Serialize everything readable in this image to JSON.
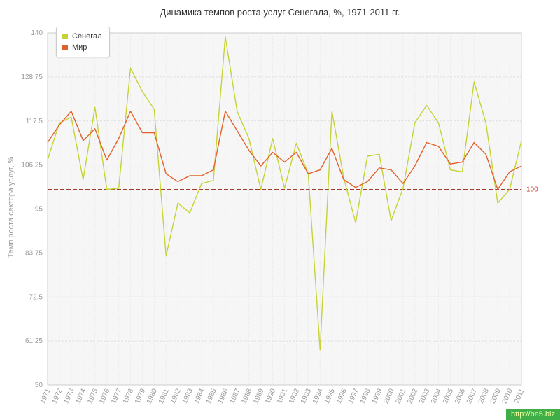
{
  "title": "Динамика темпов роста услуг Сенегала, %, 1971-2011 гг.",
  "ylabel": "Темп роста сектора услуг, %",
  "watermark": "http://be5.biz",
  "legend": {
    "items": [
      {
        "label": "Сенегал"
      },
      {
        "label": "Мир"
      }
    ]
  },
  "chart_data": {
    "type": "line",
    "title": "Динамика темпов роста услуг Сенегала, %, 1971-2011 гг.",
    "xlabel": "",
    "ylabel": "Темп роста сектора услуг, %",
    "ylim": [
      50,
      140
    ],
    "yticks": [
      50,
      61.25,
      72.5,
      83.75,
      95,
      106.25,
      117.5,
      128.75,
      140
    ],
    "grid": true,
    "legend_position": "top-left",
    "ref_line": 100,
    "ref_line_color": "#a33a2a",
    "categories": [
      1971,
      1972,
      1973,
      1974,
      1975,
      1976,
      1977,
      1978,
      1979,
      1980,
      1981,
      1982,
      1983,
      1984,
      1985,
      1986,
      1987,
      1988,
      1989,
      1990,
      1991,
      1992,
      1993,
      1994,
      1995,
      1996,
      1997,
      1998,
      1999,
      2000,
      2001,
      2002,
      2003,
      2004,
      2005,
      2006,
      2007,
      2008,
      2009,
      2010,
      2011
    ],
    "series": [
      {
        "name": "Сенегал",
        "color": "#c6d334",
        "values": [
          107.6,
          117,
          118.5,
          102.5,
          121,
          100,
          100.3,
          131,
          125,
          120.5,
          83,
          96.5,
          94,
          101.5,
          102.3,
          139,
          120,
          113,
          100,
          113,
          100.3,
          111.8,
          104,
          59,
          120,
          103,
          91.5,
          108.5,
          109,
          92,
          100.3,
          117,
          121.5,
          117,
          105,
          104.5,
          127.5,
          117,
          96.5,
          100,
          112.5
        ]
      },
      {
        "name": "Мир",
        "color": "#e2612b",
        "values": [
          112,
          116.5,
          120,
          112.5,
          115.5,
          107.5,
          113,
          120,
          114.5,
          114.5,
          104,
          102,
          103.5,
          103.5,
          105,
          120,
          115,
          110,
          106,
          109.5,
          107,
          109.5,
          104,
          105,
          110.5,
          102.5,
          100.5,
          102,
          105.5,
          105,
          101.5,
          106,
          112,
          111,
          106.5,
          107,
          112,
          109,
          100,
          104.5,
          106
        ]
      }
    ]
  }
}
